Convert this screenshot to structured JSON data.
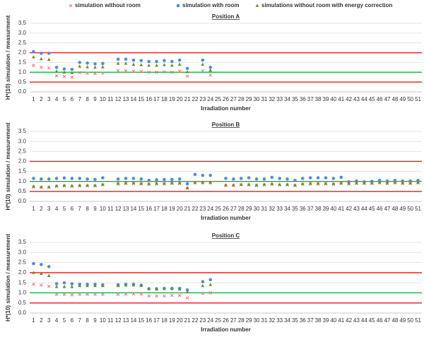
{
  "chart_data": [
    {
      "type": "scatter",
      "title": "Position A",
      "x_label": "Irradiation number",
      "y_label": "H*(10) simulation / measurment",
      "categories": [
        "1",
        "2",
        "3",
        "4",
        "5",
        "6",
        "7",
        "8",
        "9",
        "10",
        "11",
        "12",
        "13",
        "14",
        "15",
        "16",
        "17",
        "18",
        "19",
        "20",
        "21",
        "22",
        "23",
        "24",
        "25",
        "26",
        "27",
        "28",
        "29",
        "30",
        "31",
        "32",
        "33",
        "34",
        "35",
        "36",
        "37",
        "38",
        "39",
        "40",
        "41",
        "42",
        "43",
        "44",
        "45",
        "46",
        "47",
        "48",
        "49",
        "50",
        "51"
      ],
      "ylim": [
        0,
        3.5
      ],
      "yticks": [
        {
          "value": 0,
          "label": "0.0"
        },
        {
          "value": 0.5,
          "label": "0.5"
        },
        {
          "value": 1,
          "label": "1.0"
        },
        {
          "value": 1.5,
          "label": "1.5"
        },
        {
          "value": 2,
          "label": "2.0"
        },
        {
          "value": 2.5,
          "label": "2.5"
        },
        {
          "value": 3,
          "label": "3.0"
        },
        {
          "value": 3.5,
          "label": "3.5"
        }
      ],
      "grid": true,
      "reference_lines": [
        {
          "value": 2,
          "color": "#e0302a"
        },
        {
          "value": 1,
          "color": "#2fb34a"
        },
        {
          "value": 0.5,
          "color": "#e0302a"
        }
      ],
      "series": [
        {
          "name": "simulation without room",
          "color": "#e8727a",
          "marker": "x",
          "values": [
            1.35,
            1.25,
            1.22,
            0.82,
            0.78,
            0.75,
            0.98,
            0.95,
            0.93,
            0.95,
            null,
            1.08,
            1.07,
            1.05,
            1.03,
            1.0,
            1.0,
            1.02,
            1.0,
            1.05,
            0.8,
            null,
            1.08,
            0.85,
            null,
            null,
            null,
            null,
            null,
            null,
            null,
            null,
            null,
            null,
            null,
            null,
            null,
            null,
            null,
            null,
            null,
            null,
            null,
            null,
            null,
            null,
            null,
            null,
            null,
            null,
            null
          ]
        },
        {
          "name": "simulation with room",
          "color": "#4a90d9",
          "marker": "circle",
          "values": [
            2.05,
            1.97,
            1.97,
            1.25,
            1.17,
            1.15,
            1.5,
            1.47,
            1.43,
            1.45,
            null,
            1.67,
            1.67,
            1.62,
            1.6,
            1.55,
            1.55,
            1.6,
            1.55,
            1.62,
            1.2,
            null,
            1.62,
            1.25,
            null,
            null,
            null,
            null,
            null,
            null,
            null,
            null,
            null,
            null,
            null,
            null,
            null,
            null,
            null,
            null,
            null,
            null,
            null,
            null,
            null,
            null,
            null,
            null,
            null,
            null,
            null
          ]
        },
        {
          "name": "simulations without room with energy correction",
          "color": "#6e8b2a",
          "marker": "triangle",
          "values": [
            1.78,
            1.68,
            1.65,
            1.05,
            1.0,
            0.97,
            1.3,
            1.27,
            1.25,
            1.27,
            null,
            1.45,
            1.45,
            1.4,
            1.38,
            1.35,
            1.35,
            1.38,
            1.35,
            1.4,
            1.02,
            null,
            1.4,
            1.1,
            null,
            null,
            null,
            null,
            null,
            null,
            null,
            null,
            null,
            null,
            null,
            null,
            null,
            null,
            null,
            null,
            null,
            null,
            null,
            null,
            null,
            null,
            null,
            null,
            null,
            null,
            null
          ]
        }
      ]
    },
    {
      "type": "scatter",
      "title": "Position B",
      "x_label": "Irradiation number",
      "y_label": "H*(10) simulation / measurement",
      "categories": [
        "1",
        "2",
        "3",
        "4",
        "5",
        "6",
        "7",
        "8",
        "9",
        "10",
        "11",
        "12",
        "13",
        "14",
        "15",
        "16",
        "17",
        "18",
        "19",
        "20",
        "21",
        "22",
        "23",
        "24",
        "25",
        "26",
        "27",
        "28",
        "29",
        "30",
        "31",
        "32",
        "33",
        "34",
        "35",
        "36",
        "37",
        "38",
        "39",
        "40",
        "41",
        "42",
        "43",
        "44",
        "45",
        "46",
        "47",
        "48",
        "49",
        "50",
        "51"
      ],
      "ylim": [
        0,
        3.5
      ],
      "yticks": [
        {
          "value": 0,
          "label": "0.0"
        },
        {
          "value": 0.5,
          "label": "0.5"
        },
        {
          "value": 1,
          "label": "1.0"
        },
        {
          "value": 1.5,
          "label": "1.5"
        },
        {
          "value": 2,
          "label": "2.0"
        },
        {
          "value": 2.5,
          "label": "2.5"
        },
        {
          "value": 3,
          "label": "3.0"
        },
        {
          "value": 3.5,
          "label": "3.5"
        }
      ],
      "grid": true,
      "reference_lines": [
        {
          "value": 2,
          "color": "#e0302a"
        },
        {
          "value": 1,
          "color": "#2fb34a"
        },
        {
          "value": 0.5,
          "color": "#e0302a"
        }
      ],
      "series": [
        {
          "name": "simulation without room",
          "color": "#e8727a",
          "marker": "x",
          "values": [
            0.72,
            0.7,
            0.7,
            0.75,
            0.77,
            0.75,
            0.77,
            0.77,
            0.77,
            0.82,
            null,
            0.87,
            0.89,
            0.89,
            0.87,
            0.85,
            0.87,
            0.87,
            0.89,
            0.89,
            0.65,
            0.92,
            0.92,
            0.92,
            null,
            0.79,
            0.79,
            0.82,
            0.82,
            0.79,
            0.82,
            0.85,
            0.82,
            0.82,
            0.79,
            0.85,
            0.87,
            0.87,
            0.87,
            0.85,
            0.89,
            0.87,
            0.89,
            0.89,
            0.89,
            0.92,
            0.89,
            0.92,
            0.89,
            0.89,
            0.92
          ]
        },
        {
          "name": "simulation with room",
          "color": "#4a90d9",
          "marker": "circle",
          "values": [
            1.15,
            1.12,
            1.12,
            1.15,
            1.17,
            1.15,
            1.15,
            1.12,
            1.1,
            1.18,
            null,
            1.12,
            1.15,
            1.15,
            1.12,
            1.05,
            1.08,
            1.1,
            1.1,
            1.12,
            0.88,
            1.35,
            1.3,
            1.3,
            null,
            1.15,
            1.12,
            1.15,
            1.18,
            1.12,
            1.12,
            1.2,
            1.15,
            1.12,
            1.05,
            1.15,
            1.18,
            1.18,
            1.18,
            1.15,
            1.2,
            0.98,
            1.02,
            0.98,
            1.0,
            1.05,
            1.02,
            1.05,
            1.02,
            1.02,
            1.05
          ]
        },
        {
          "name": "simulations without room with energy correction",
          "color": "#6e8b2a",
          "marker": "triangle",
          "values": [
            0.75,
            0.72,
            0.72,
            0.78,
            0.8,
            0.78,
            0.8,
            0.8,
            0.8,
            0.85,
            null,
            0.9,
            0.92,
            0.92,
            0.9,
            0.88,
            0.9,
            0.9,
            0.92,
            0.92,
            0.68,
            0.95,
            0.95,
            0.95,
            null,
            0.82,
            0.82,
            0.85,
            0.85,
            0.82,
            0.85,
            0.88,
            0.85,
            0.85,
            0.82,
            0.88,
            0.9,
            0.9,
            0.9,
            0.88,
            0.92,
            0.9,
            0.92,
            0.92,
            0.92,
            0.95,
            0.92,
            0.95,
            0.92,
            0.92,
            0.95
          ]
        }
      ]
    },
    {
      "type": "scatter",
      "title": "Position C",
      "x_label": "Irradiation number",
      "y_label": "H*(10) simulation / measurement",
      "categories": [
        "1",
        "2",
        "3",
        "4",
        "5",
        "6",
        "7",
        "8",
        "9",
        "10",
        "11",
        "12",
        "13",
        "14",
        "15",
        "16",
        "17",
        "18",
        "19",
        "20",
        "21",
        "22",
        "23",
        "24",
        "25",
        "26",
        "27",
        "28",
        "29",
        "30",
        "31",
        "32",
        "33",
        "34",
        "35",
        "36",
        "37",
        "38",
        "39",
        "40",
        "41",
        "42",
        "43",
        "44",
        "45",
        "46",
        "47",
        "48",
        "49",
        "50",
        "51"
      ],
      "ylim": [
        0,
        3.5
      ],
      "yticks": [
        {
          "value": 0,
          "label": "0.0"
        },
        {
          "value": 0.5,
          "label": "0.5"
        },
        {
          "value": 1,
          "label": "1.0"
        },
        {
          "value": 1.5,
          "label": "1.5"
        },
        {
          "value": 2,
          "label": "2.0"
        },
        {
          "value": 2.5,
          "label": "2.5"
        },
        {
          "value": 3,
          "label": "3.0"
        },
        {
          "value": 3.5,
          "label": "3.5"
        }
      ],
      "grid": true,
      "reference_lines": [
        {
          "value": 2,
          "color": "#e0302a"
        },
        {
          "value": 1,
          "color": "#2fb34a"
        },
        {
          "value": 0.5,
          "color": "#e0302a"
        }
      ],
      "series": [
        {
          "name": "simulation without room",
          "color": "#e8727a",
          "marker": "x",
          "values": [
            1.42,
            1.38,
            1.32,
            0.92,
            0.92,
            0.9,
            0.92,
            0.92,
            0.92,
            0.92,
            null,
            0.92,
            0.93,
            0.95,
            0.93,
            0.85,
            0.85,
            0.85,
            0.87,
            0.87,
            0.75,
            null,
            0.97,
            1.0,
            null,
            null,
            null,
            null,
            null,
            null,
            null,
            null,
            null,
            null,
            null,
            null,
            null,
            null,
            null,
            null,
            null,
            null,
            null,
            null,
            null,
            null,
            null,
            null,
            null,
            null,
            null
          ]
        },
        {
          "name": "simulation with room",
          "color": "#4a90d9",
          "marker": "circle",
          "values": [
            2.45,
            2.4,
            2.3,
            1.45,
            1.5,
            1.45,
            1.42,
            1.42,
            1.42,
            1.4,
            null,
            1.4,
            1.42,
            1.42,
            1.38,
            1.2,
            1.2,
            1.22,
            1.22,
            1.22,
            1.15,
            null,
            1.55,
            1.65,
            null,
            null,
            null,
            null,
            null,
            null,
            null,
            null,
            null,
            null,
            null,
            null,
            null,
            null,
            null,
            null,
            null,
            null,
            null,
            null,
            null,
            null,
            null,
            null,
            null,
            null,
            null
          ]
        },
        {
          "name": "simulations without room with energy correction",
          "color": "#6e8b2a",
          "marker": "triangle",
          "values": [
            2.0,
            1.95,
            1.85,
            1.3,
            1.3,
            1.3,
            1.35,
            1.35,
            1.35,
            1.35,
            null,
            1.35,
            1.38,
            1.38,
            1.35,
            1.2,
            1.18,
            1.2,
            1.2,
            1.18,
            1.05,
            null,
            1.35,
            1.4,
            null,
            null,
            null,
            null,
            null,
            null,
            null,
            null,
            null,
            null,
            null,
            null,
            null,
            null,
            null,
            null,
            null,
            null,
            null,
            null,
            null,
            null,
            null,
            null,
            null,
            null,
            null
          ]
        }
      ]
    }
  ]
}
